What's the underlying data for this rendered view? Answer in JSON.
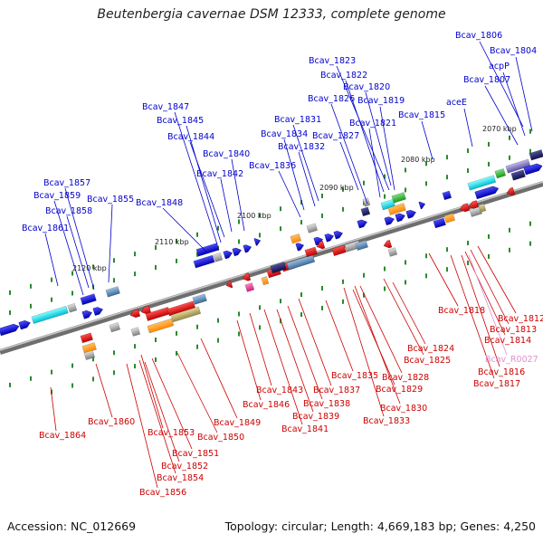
{
  "title": "Beutenbergia cavernae DSM 12333, complete genome",
  "footer": {
    "accession": "Accession: NC_012669",
    "topology": "Topology: circular; Length: 4,669,183 bp; Genes: 4,250"
  },
  "colors": {
    "plus_label": "#0000cc",
    "minus_label": "#cc0000",
    "rna_label": "#e090d0",
    "backbone": "#8a8a8a",
    "tick": "#2a8a2a"
  },
  "kbp_ticks": [
    "2120 kbp",
    "2110 kbp",
    "2100 kbp",
    "2090 kbp",
    "2080 kbp",
    "2070 kbp"
  ],
  "plus_labels": [
    "Bcav_1806",
    "Bcav_1804",
    "acpP",
    "Bcav_1807",
    "Bcav_1823",
    "Bcav_1822",
    "Bcav_1820",
    "Bcav_1826",
    "Bcav_1819",
    "Bcav_1815",
    "aceE",
    "Bcav_1821",
    "Bcav_1847",
    "Bcav_1831",
    "Bcav_1845",
    "Bcav_1834",
    "Bcav_1827",
    "Bcav_1844",
    "Bcav_1832",
    "Bcav_1840",
    "Bcav_1836",
    "Bcav_1842",
    "Bcav_1857",
    "Bcav_1859",
    "Bcav_1855",
    "Bcav_1848",
    "Bcav_1858",
    "Bcav_1861"
  ],
  "minus_labels": [
    "Bcav_1818",
    "Bcav_1812",
    "Bcav_1813",
    "Bcav_1814",
    "Bcav_1824",
    "Bcav_1825",
    "Bcav_1816",
    "Bcav_1817",
    "Bcav_1835",
    "Bcav_1828",
    "Bcav_1843",
    "Bcav_1837",
    "Bcav_1829",
    "Bcav_1846",
    "Bcav_1838",
    "Bcav_1830",
    "Bcav_1839",
    "Bcav_1833",
    "Bcav_1841",
    "Bcav_1849",
    "Bcav_1860",
    "Bcav_1850",
    "Bcav_1853",
    "Bcav_1851",
    "Bcav_1864",
    "Bcav_1852",
    "Bcav_1854",
    "Bcav_1856"
  ],
  "rna_labels": [
    "Bcav_R0027"
  ]
}
